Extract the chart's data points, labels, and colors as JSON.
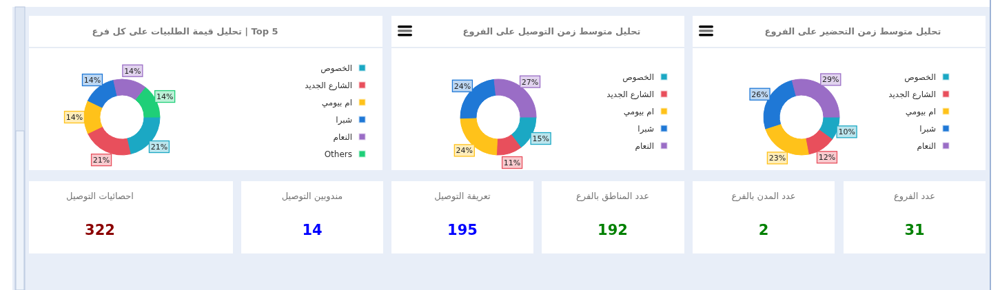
{
  "chart_data": [
    {
      "type": "donut",
      "title": "Top 5 | تحليل قيمة الطلبيات على كل فرع",
      "legend": "right",
      "categories": [
        "الخصوص",
        "الشارع الجديد",
        "ام بيومي",
        "شبرا",
        "النعام",
        "Others"
      ],
      "values": [
        21,
        21,
        14,
        14,
        14,
        14
      ],
      "colors": [
        "#1ba8c4",
        "#e84f5c",
        "#ffc21a",
        "#1f78d6",
        "#9a6dc6",
        "#1fcf78"
      ],
      "value_labels": [
        "21%",
        "21%",
        "14%",
        "14%",
        "14%",
        "14%"
      ]
    },
    {
      "type": "donut",
      "title": "تحليل متوسط زمن التوصيل على الفروع",
      "legend": "right",
      "categories": [
        "الخصوص",
        "الشارع الجديد",
        "ام بيومي",
        "شبرا",
        "النعام"
      ],
      "values": [
        15,
        11,
        24,
        24,
        27
      ],
      "colors": [
        "#1ba8c4",
        "#e84f5c",
        "#ffc21a",
        "#1f78d6",
        "#9a6dc6"
      ],
      "value_labels": [
        "15%",
        "11%",
        "24%",
        "24%",
        "27%"
      ]
    },
    {
      "type": "donut",
      "title": "تحليل متوسط زمن التحضير على الفروع",
      "legend": "right",
      "categories": [
        "الخصوص",
        "الشارع الجديد",
        "ام بيومي",
        "شبرا",
        "النعام"
      ],
      "values": [
        10,
        12,
        23,
        26,
        29
      ],
      "colors": [
        "#1ba8c4",
        "#e84f5c",
        "#ffc21a",
        "#1f78d6",
        "#9a6dc6"
      ],
      "value_labels": [
        "10%",
        "12%",
        "23%",
        "26%",
        "29%"
      ]
    },
    {
      "type": "other",
      "categories": [
        "احصائيات التوصيل",
        "مندوبين التوصيل",
        "تعريفة التوصيل",
        "عدد المناطق بالفرع",
        "عدد المدن بالفرع",
        "عدد الفروع"
      ],
      "values": [
        322,
        14,
        195,
        192,
        2,
        31
      ],
      "data_labels": true
    }
  ]
}
